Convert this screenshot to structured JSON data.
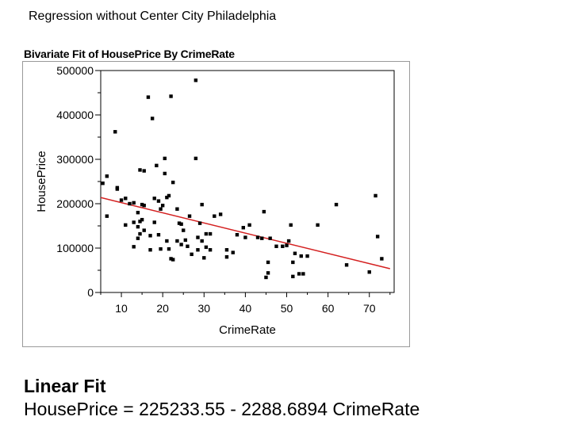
{
  "slide": {
    "title": "Regression without Center City Philadelphia"
  },
  "report": {
    "heading": "Bivariate Fit of HousePrice By CrimeRate",
    "fit_heading": "Linear Fit",
    "fit_equation": "HousePrice = 225233.55 - 2288.6894 CrimeRate"
  },
  "colors": {
    "points": "#000000",
    "fit_line": "#d42020",
    "axis": "#000000",
    "frame": "#9a9a9a"
  },
  "chart_data": {
    "type": "scatter",
    "title": "Bivariate Fit of HousePrice By CrimeRate",
    "xlabel": "CrimeRate",
    "ylabel": "HousePrice",
    "xlim": [
      5,
      76
    ],
    "ylim": [
      0,
      500000
    ],
    "x_ticks": [
      10,
      20,
      30,
      40,
      50,
      60,
      70
    ],
    "y_ticks": [
      0,
      100000,
      200000,
      300000,
      400000,
      500000
    ],
    "y_tick_labels": [
      "0",
      "100000",
      "200000",
      "300000",
      "400000",
      "500000"
    ],
    "grid": false,
    "points": [
      [
        5.5,
        246000
      ],
      [
        6.5,
        262000
      ],
      [
        6.5,
        172000
      ],
      [
        8.5,
        362000
      ],
      [
        9,
        236000
      ],
      [
        9,
        233000
      ],
      [
        10,
        208000
      ],
      [
        11,
        212000
      ],
      [
        11,
        152000
      ],
      [
        12,
        200000
      ],
      [
        13,
        202000
      ],
      [
        13,
        158000
      ],
      [
        13,
        103000
      ],
      [
        14,
        180000
      ],
      [
        14,
        148000
      ],
      [
        14,
        122000
      ],
      [
        14.5,
        276000
      ],
      [
        14.5,
        160000
      ],
      [
        14.5,
        132000
      ],
      [
        15,
        198000
      ],
      [
        15,
        164000
      ],
      [
        15.5,
        274000
      ],
      [
        15.5,
        196000
      ],
      [
        15.5,
        140000
      ],
      [
        16.5,
        440000
      ],
      [
        17,
        128000
      ],
      [
        17,
        96000
      ],
      [
        17.5,
        392000
      ],
      [
        18,
        212000
      ],
      [
        18,
        158000
      ],
      [
        18.5,
        286000
      ],
      [
        19,
        206000
      ],
      [
        19,
        130000
      ],
      [
        19.5,
        188000
      ],
      [
        19.5,
        98000
      ],
      [
        20,
        196000
      ],
      [
        20.5,
        302000
      ],
      [
        20.5,
        268000
      ],
      [
        21,
        214000
      ],
      [
        21,
        116000
      ],
      [
        21.5,
        218000
      ],
      [
        21.5,
        98000
      ],
      [
        22,
        442000
      ],
      [
        22,
        76000
      ],
      [
        22.5,
        248000
      ],
      [
        22.5,
        74000
      ],
      [
        23.5,
        188000
      ],
      [
        23.5,
        116000
      ],
      [
        24,
        156000
      ],
      [
        24.5,
        154000
      ],
      [
        24.5,
        108000
      ],
      [
        25,
        140000
      ],
      [
        25.5,
        118000
      ],
      [
        26,
        104000
      ],
      [
        26.5,
        172000
      ],
      [
        27,
        86000
      ],
      [
        28,
        478000
      ],
      [
        28,
        302000
      ],
      [
        28.5,
        124000
      ],
      [
        28.5,
        96000
      ],
      [
        29,
        156000
      ],
      [
        29.5,
        198000
      ],
      [
        29.5,
        116000
      ],
      [
        30,
        78000
      ],
      [
        30.5,
        132000
      ],
      [
        30.5,
        102000
      ],
      [
        31.5,
        132000
      ],
      [
        31.5,
        96000
      ],
      [
        32.5,
        172000
      ],
      [
        34,
        176000
      ],
      [
        35.5,
        96000
      ],
      [
        35.5,
        80000
      ],
      [
        37,
        90000
      ],
      [
        38,
        130000
      ],
      [
        39.5,
        146000
      ],
      [
        40,
        124000
      ],
      [
        41,
        152000
      ],
      [
        43,
        124000
      ],
      [
        44,
        122000
      ],
      [
        44.5,
        182000
      ],
      [
        45,
        34000
      ],
      [
        45.5,
        44000
      ],
      [
        45.5,
        68000
      ],
      [
        46,
        122000
      ],
      [
        47.5,
        104000
      ],
      [
        49,
        104000
      ],
      [
        50,
        106000
      ],
      [
        50.5,
        116000
      ],
      [
        51,
        152000
      ],
      [
        51.5,
        36000
      ],
      [
        52,
        88000
      ],
      [
        53,
        42000
      ],
      [
        53.5,
        82000
      ],
      [
        54,
        42000
      ],
      [
        55,
        82000
      ],
      [
        57.5,
        152000
      ],
      [
        62,
        198000
      ],
      [
        64.5,
        62000
      ],
      [
        70,
        46000
      ],
      [
        71.5,
        218000
      ],
      [
        72,
        126000
      ],
      [
        73,
        76000
      ],
      [
        51.5,
        68000
      ]
    ],
    "fit_line": {
      "intercept": 225233.55,
      "slope": -2288.6894,
      "x_range": [
        5,
        75
      ]
    }
  }
}
